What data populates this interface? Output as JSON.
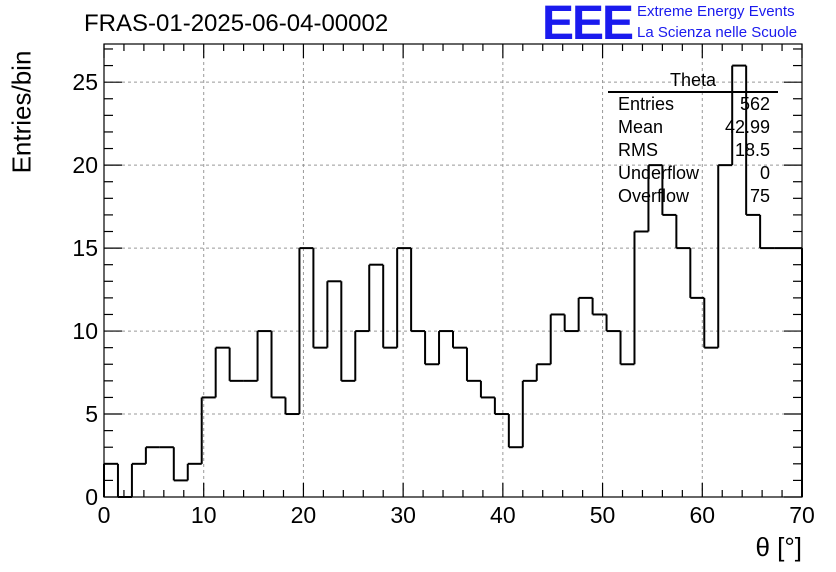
{
  "header": {
    "run_title": "FRAS-01-2025-06-04-00002",
    "logo": "EEE",
    "logo_line1": "Extreme Energy Events",
    "logo_line2": "La Scienza nelle Scuole"
  },
  "stats": {
    "title": "Theta",
    "rows": [
      {
        "key": "Entries",
        "value": "562"
      },
      {
        "key": "Mean",
        "value": "42.99"
      },
      {
        "key": "RMS",
        "value": "18.5"
      },
      {
        "key": "Underflow",
        "value": "0"
      },
      {
        "key": "Overflow",
        "value": "75"
      }
    ]
  },
  "colors": {
    "logo": "#1a1aee",
    "line": "#000000",
    "grid": "#999999"
  },
  "chart_data": {
    "type": "bar",
    "style": "step-histogram",
    "xlabel": "θ [°]",
    "ylabel": "Entries/bin",
    "xlim": [
      0,
      70
    ],
    "ylim": [
      0,
      27.3
    ],
    "bin_width": 1.4,
    "grid": true,
    "x_ticks": [
      "0",
      "10",
      "20",
      "30",
      "40",
      "50",
      "60",
      "70"
    ],
    "y_ticks": [
      "0",
      "5",
      "10",
      "15",
      "20",
      "25"
    ],
    "values": [
      2,
      0,
      2,
      3,
      3,
      1,
      2,
      6,
      9,
      7,
      7,
      10,
      6,
      5,
      15,
      9,
      13,
      7,
      10,
      14,
      9,
      15,
      10,
      8,
      10,
      9,
      7,
      6,
      5,
      3,
      7,
      8,
      11,
      10,
      12,
      11,
      10,
      8,
      16,
      20,
      17,
      15,
      12,
      9,
      20,
      26,
      17,
      15,
      15,
      15
    ]
  }
}
